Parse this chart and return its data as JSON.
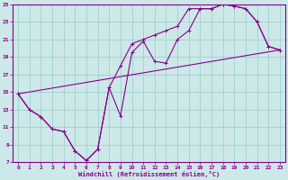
{
  "xlabel": "Windchill (Refroidissement éolien,°C)",
  "bg_color": "#cce8e8",
  "grid_color": "#99cccc",
  "line_color": "#880088",
  "xlim": [
    -0.5,
    23.5
  ],
  "ylim": [
    7,
    25
  ],
  "xticks": [
    0,
    1,
    2,
    3,
    4,
    5,
    6,
    7,
    8,
    9,
    10,
    11,
    12,
    13,
    14,
    15,
    16,
    17,
    18,
    19,
    20,
    21,
    22,
    23
  ],
  "yticks": [
    7,
    9,
    11,
    13,
    15,
    17,
    19,
    21,
    23,
    25
  ],
  "line1_x": [
    0,
    1,
    2,
    3,
    4,
    5,
    6,
    7,
    8,
    9,
    10,
    11,
    12,
    13,
    14,
    15,
    16,
    17,
    18,
    19,
    20,
    21,
    22,
    23
  ],
  "line1_y": [
    14.8,
    13.0,
    12.2,
    10.8,
    10.5,
    8.3,
    7.2,
    8.5,
    15.5,
    12.3,
    19.5,
    20.8,
    18.5,
    18.3,
    21.0,
    22.0,
    24.5,
    24.5,
    25.0,
    24.8,
    24.5,
    23.0,
    20.2,
    19.8
  ],
  "line2_x": [
    0,
    1,
    2,
    3,
    4,
    5,
    6,
    7,
    8,
    9,
    10,
    11,
    12,
    13,
    14,
    15,
    16,
    17,
    18,
    19,
    20,
    21,
    22,
    23
  ],
  "line2_y": [
    14.8,
    13.0,
    12.2,
    10.8,
    10.5,
    8.3,
    7.2,
    8.5,
    15.5,
    18.0,
    20.5,
    21.0,
    21.5,
    22.0,
    22.5,
    24.5,
    24.5,
    24.5,
    25.0,
    24.8,
    24.5,
    23.0,
    20.2,
    19.8
  ],
  "line3_x": [
    0,
    23
  ],
  "line3_y": [
    14.8,
    19.8
  ]
}
